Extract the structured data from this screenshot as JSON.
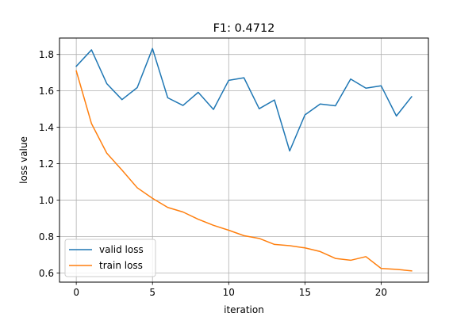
{
  "chart_data": {
    "type": "line",
    "title": "F1: 0.4712",
    "xlabel": "iteration",
    "ylabel": "loss value",
    "xlim": [
      -1.1,
      23.1
    ],
    "ylim": [
      0.55,
      1.89
    ],
    "xticks": [
      0,
      5,
      10,
      15,
      20
    ],
    "yticks": [
      0.6,
      0.8,
      1.0,
      1.2,
      1.4,
      1.6,
      1.8
    ],
    "xtick_labels": [
      "0",
      "5",
      "10",
      "15",
      "20"
    ],
    "ytick_labels": [
      "0.6",
      "0.8",
      "1.0",
      "1.2",
      "1.4",
      "1.6",
      "1.8"
    ],
    "grid": true,
    "legend_position": "lower-left",
    "x": [
      0,
      1,
      2,
      3,
      4,
      5,
      6,
      7,
      8,
      9,
      10,
      11,
      12,
      13,
      14,
      15,
      16,
      17,
      18,
      19,
      20,
      21,
      22
    ],
    "series": [
      {
        "name": "valid loss",
        "color": "#1f77b4",
        "values": [
          1.735,
          1.825,
          1.64,
          1.552,
          1.618,
          1.832,
          1.562,
          1.52,
          1.592,
          1.498,
          1.658,
          1.672,
          1.502,
          1.55,
          1.27,
          1.468,
          1.528,
          1.518,
          1.665,
          1.615,
          1.628,
          1.462,
          1.568
        ]
      },
      {
        "name": "train loss",
        "color": "#ff7f0e",
        "values": [
          1.71,
          1.42,
          1.258,
          1.165,
          1.068,
          1.01,
          0.96,
          0.935,
          0.895,
          0.862,
          0.835,
          0.805,
          0.79,
          0.757,
          0.75,
          0.738,
          0.718,
          0.68,
          0.67,
          0.69,
          0.625,
          0.62,
          0.612
        ]
      }
    ]
  }
}
